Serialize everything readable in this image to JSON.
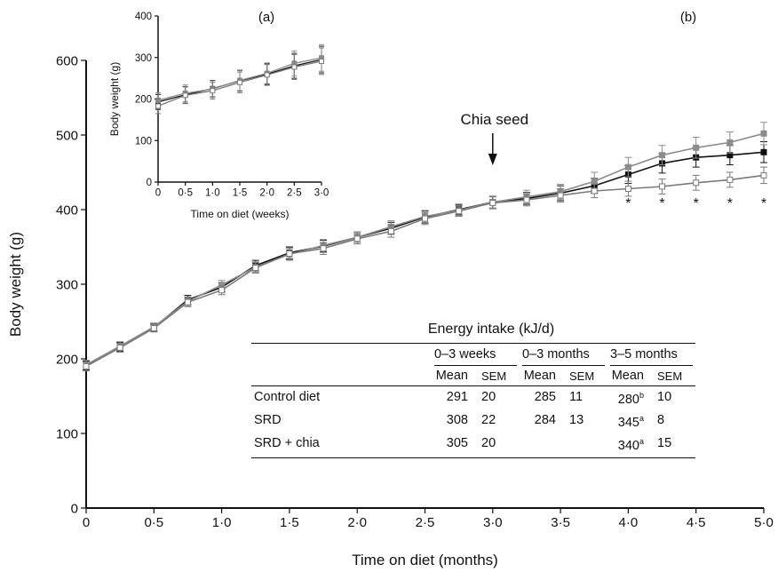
{
  "chart_data": [
    {
      "panel": "(b)",
      "type": "line",
      "xlabel": "Time on diet (months)",
      "ylabel": "Body weight (g)",
      "xlim": [
        0,
        5.0
      ],
      "ylim": [
        0,
        600
      ],
      "x_ticks": [
        "0",
        "0·5",
        "1·0",
        "1·5",
        "2·0",
        "2·5",
        "3·0",
        "3·5",
        "4·0",
        "4·5",
        "5·0"
      ],
      "y_ticks": [
        "0",
        "100",
        "200",
        "300",
        "400",
        "500",
        "600"
      ],
      "annotation": "Chia seed",
      "annotation_x": 3.0,
      "significance_markers": [
        "*",
        "*",
        "*",
        "*",
        "*"
      ],
      "significance_x": [
        4.0,
        4.25,
        4.5,
        4.75,
        5.0
      ],
      "series": [
        {
          "marker": "black-filled-square",
          "x": [
            0,
            0.25,
            0.5,
            0.75,
            1.0,
            1.25,
            1.5,
            1.75,
            2.0,
            2.25,
            2.5,
            2.75,
            3.0,
            3.25,
            3.5,
            3.75,
            4.0,
            4.25,
            4.5,
            4.75,
            5.0
          ],
          "y": [
            191,
            216,
            242,
            279,
            296,
            325,
            342,
            351,
            363,
            375,
            390,
            400,
            410,
            415,
            422,
            432,
            447,
            462,
            470,
            473,
            477
          ],
          "err": [
            6,
            6,
            5,
            6,
            6,
            7,
            8,
            8,
            7,
            8,
            8,
            7,
            8,
            8,
            10,
            10,
            12,
            13,
            13,
            13,
            14
          ]
        },
        {
          "marker": "grey-filled-square",
          "x": [
            0,
            0.25,
            0.5,
            0.75,
            1.0,
            1.25,
            1.5,
            1.75,
            2.0,
            2.25,
            2.5,
            2.75,
            3.0,
            3.25,
            3.5,
            3.75,
            4.0,
            4.25,
            4.5,
            4.75,
            5.0
          ],
          "y": [
            192,
            217,
            243,
            277,
            299,
            323,
            340,
            352,
            363,
            377,
            391,
            399,
            410,
            417,
            424,
            438,
            457,
            473,
            483,
            490,
            502
          ],
          "err": [
            6,
            6,
            5,
            6,
            6,
            7,
            8,
            8,
            7,
            8,
            8,
            7,
            8,
            9,
            10,
            12,
            13,
            13,
            14,
            14,
            15
          ]
        },
        {
          "marker": "open-square",
          "x": [
            0,
            0.25,
            0.5,
            0.75,
            1.0,
            1.25,
            1.5,
            1.75,
            2.0,
            2.25,
            2.5,
            2.75,
            3.0,
            3.25,
            3.5,
            3.75,
            4.0,
            4.25,
            4.5,
            4.75,
            5.0
          ],
          "y": [
            190,
            215,
            241,
            276,
            292,
            322,
            341,
            348,
            361,
            371,
            388,
            398,
            409,
            413,
            419,
            425,
            428,
            431,
            436,
            440,
            446
          ],
          "err": [
            6,
            6,
            5,
            6,
            6,
            7,
            8,
            8,
            7,
            8,
            8,
            7,
            8,
            8,
            9,
            9,
            10,
            10,
            10,
            10,
            11
          ]
        }
      ]
    },
    {
      "panel": "(a)",
      "type": "line",
      "xlabel": "Time on diet (weeks)",
      "ylabel": "Body weight (g)",
      "xlim": [
        0,
        3.0
      ],
      "ylim": [
        0,
        400
      ],
      "x_ticks": [
        "0",
        "0·5",
        "1·0",
        "1·5",
        "2·0",
        "2·5",
        "3·0"
      ],
      "y_ticks": [
        "0",
        "100",
        "200",
        "300",
        "400"
      ],
      "series": [
        {
          "marker": "black-filled-square",
          "x": [
            0,
            0.5,
            1.0,
            1.5,
            2.0,
            2.5,
            3.0
          ],
          "y": [
            193,
            210,
            225,
            244,
            260,
            280,
            295
          ],
          "err": [
            18,
            20,
            20,
            25,
            25,
            30,
            32
          ]
        },
        {
          "marker": "grey-filled-square",
          "x": [
            0,
            0.5,
            1.0,
            1.5,
            2.0,
            2.5,
            3.0
          ],
          "y": [
            197,
            214,
            224,
            245,
            262,
            286,
            299
          ],
          "err": [
            18,
            20,
            20,
            25,
            25,
            30,
            32
          ]
        },
        {
          "marker": "open-square",
          "x": [
            0,
            0.5,
            1.0,
            1.5,
            2.0,
            2.5,
            3.0
          ],
          "y": [
            183,
            209,
            220,
            240,
            258,
            277,
            291
          ],
          "err": [
            18,
            20,
            20,
            25,
            25,
            30,
            32
          ]
        }
      ]
    }
  ],
  "energy_table": {
    "title": "Energy intake (kJ/d)",
    "groups": [
      "0–3 weeks",
      "0–3 months",
      "3–5 months"
    ],
    "mean_label": "Mean",
    "sem_label": "SEM",
    "rows": [
      {
        "label": "Control diet",
        "w_mean": "291",
        "w_sem": "20",
        "m_mean": "285",
        "m_sem": "11",
        "l_mean": "280",
        "l_sup": "b",
        "l_sem": "10"
      },
      {
        "label": "SRD",
        "w_mean": "308",
        "w_sem": "22",
        "m_mean": "284",
        "m_sem": "13",
        "l_mean": "345",
        "l_sup": "a",
        "l_sem": "8"
      },
      {
        "label": "SRD + chia",
        "w_mean": "305",
        "w_sem": "20",
        "m_mean": "",
        "m_sem": "",
        "l_mean": "340",
        "l_sup": "a",
        "l_sem": "15"
      }
    ]
  },
  "colors": {
    "black_series": "#111111",
    "grey_series": "#8c8c8c",
    "open_series": "#7a7a7a",
    "open_fill": "#ffffff"
  }
}
